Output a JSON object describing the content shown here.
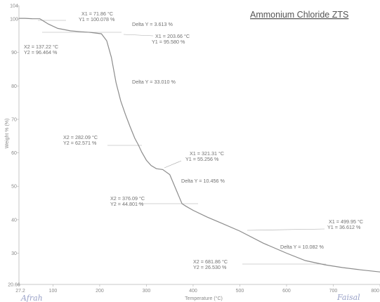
{
  "chart_data": {
    "type": "line",
    "title": "Ammonium Chloride ZTS",
    "xlabel": "Temperature (°C)",
    "ylabel": "Weight % (%)",
    "xlim": [
      27.2,
      800
    ],
    "ylim": [
      20.66,
      104
    ],
    "x_ticks": [
      "27.2",
      "100",
      "200",
      "300",
      "400",
      "500",
      "600",
      "700",
      "800"
    ],
    "x_tick_values": [
      27.2,
      100,
      200,
      300,
      400,
      500,
      600,
      700,
      800
    ],
    "y_ticks": [
      "20.66",
      "30",
      "40",
      "50",
      "60",
      "70",
      "80",
      "90",
      "100",
      "104"
    ],
    "y_tick_values": [
      20.66,
      30,
      40,
      50,
      60,
      70,
      80,
      90,
      100,
      104
    ],
    "grid": false,
    "series": [
      {
        "x": [
          27.2,
          40,
          55,
          71.86,
          90,
          110,
          137.22,
          160,
          180,
          203.66,
          215,
          225,
          235,
          245,
          255,
          265,
          275,
          282.09,
          290,
          300,
          310,
          321.31,
          335,
          350,
          365,
          376.09,
          385,
          400,
          430,
          460,
          499.95,
          550,
          600,
          640,
          681.86,
          720,
          760,
          800
        ],
        "y": [
          100.2,
          100.2,
          100.1,
          100.078,
          98.5,
          97.2,
          96.464,
          96.2,
          96.0,
          95.58,
          93.5,
          88.5,
          81.0,
          75.5,
          71.5,
          67.8,
          64.4,
          62.571,
          60.2,
          57.8,
          56.2,
          55.256,
          55.0,
          53.5,
          48.5,
          44.801,
          44.0,
          42.8,
          40.8,
          39.0,
          36.612,
          33.0,
          30.0,
          27.8,
          26.53,
          25.7,
          25.0,
          24.4
        ]
      }
    ],
    "annotations": [
      {
        "lines": [
          "X1 = 71.86 °C",
          "Y1 = 100.078 %"
        ]
      },
      {
        "lines": [
          "Delta Y = 3.613 %"
        ]
      },
      {
        "lines": [
          "X1 = 203.66 °C",
          "Y1 = 95.580 %"
        ]
      },
      {
        "lines": [
          "X2 = 137.22 °C",
          "Y2 = 96.464 %"
        ]
      },
      {
        "lines": [
          "Delta Y = 33.010 %"
        ]
      },
      {
        "lines": [
          "X2 = 282.09 °C",
          "Y2 = 62.571 %"
        ]
      },
      {
        "lines": [
          "X1 = 321.31 °C",
          "Y1 = 55.256 %"
        ]
      },
      {
        "lines": [
          "Delta Y = 10.456 %"
        ]
      },
      {
        "lines": [
          "X2 = 376.09 °C",
          "Y2 = 44.801 %"
        ]
      },
      {
        "lines": [
          "X1 = 499.95 °C",
          "Y1 = 36.612 %"
        ]
      },
      {
        "lines": [
          "Delta Y = 10.082 %"
        ]
      },
      {
        "lines": [
          "X2 = 681.86 °C",
          "Y2 = 26.530 %"
        ]
      }
    ]
  },
  "signatures": [
    "Afrah",
    "Faisal"
  ]
}
